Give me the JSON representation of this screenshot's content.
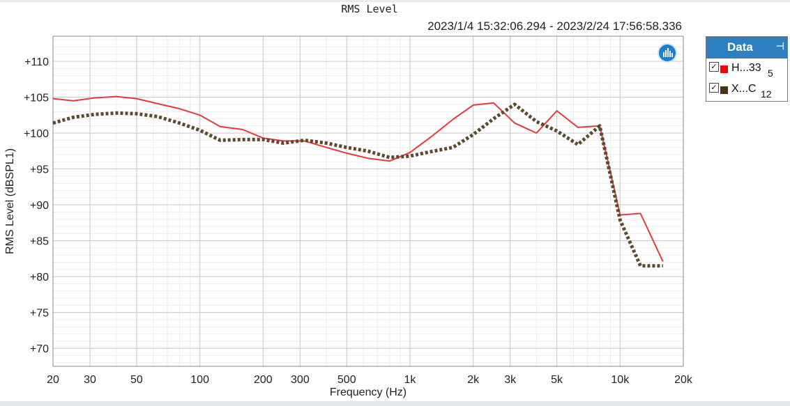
{
  "window": {
    "title": "RMS Level",
    "date_range": "2023/1/4 15:32:06.294 - 2023/2/24 17:56:58.336"
  },
  "legend": {
    "title": "Data",
    "pin_icon": "pin-icon",
    "items": [
      {
        "name": "H...33",
        "count": "5",
        "color": "#ff0000",
        "checked": true
      },
      {
        "name": "X...C",
        "count": "12",
        "color": "#4a3510",
        "checked": true
      }
    ]
  },
  "analyzer_icon": "analyzer-logo-icon",
  "chart_data": {
    "type": "line",
    "title": "",
    "xlabel": "Frequency (Hz)",
    "ylabel": "RMS Level (dBSPL1)",
    "xscale": "log",
    "xlim": [
      20,
      20000
    ],
    "ylim": [
      67.5,
      113.5
    ],
    "grid": true,
    "legend_placement": "right",
    "x_ticks": [
      20,
      30,
      50,
      100,
      200,
      300,
      500,
      1000,
      2000,
      3000,
      5000,
      10000,
      20000
    ],
    "x_tick_labels": [
      "20",
      "30",
      "50",
      "100",
      "200",
      "300",
      "500",
      "1k",
      "2k",
      "3k",
      "5k",
      "10k",
      "20k"
    ],
    "y_ticks": [
      70,
      75,
      80,
      85,
      90,
      95,
      100,
      105,
      110
    ],
    "y_tick_labels": [
      "+70",
      "+75",
      "+80",
      "+85",
      "+90",
      "+95",
      "+100",
      "+105",
      "+110"
    ],
    "series": [
      {
        "name": "H...33",
        "color": "#e8383d",
        "style": "solid",
        "x": [
          20,
          25,
          31.5,
          40,
          50,
          63,
          80,
          100,
          125,
          160,
          200,
          250,
          315,
          400,
          500,
          630,
          800,
          1000,
          1250,
          1600,
          2000,
          2500,
          3150,
          4000,
          5000,
          6300,
          8000,
          10000,
          12500,
          16000
        ],
        "values": [
          104.8,
          104.5,
          104.9,
          105.1,
          104.8,
          104.1,
          103.4,
          102.5,
          100.9,
          100.5,
          99.3,
          98.9,
          98.9,
          98.0,
          97.2,
          96.5,
          96.1,
          97.3,
          99.4,
          101.9,
          103.9,
          104.2,
          101.4,
          100.0,
          103.1,
          100.8,
          101.0,
          88.6,
          88.8,
          82.1
        ]
      },
      {
        "name": "X...C",
        "color": "#5c4a2c",
        "style": "dotted",
        "x": [
          20,
          25,
          31.5,
          40,
          50,
          63,
          80,
          100,
          125,
          160,
          200,
          250,
          315,
          400,
          500,
          630,
          800,
          1000,
          1250,
          1600,
          2000,
          2500,
          3150,
          4000,
          5000,
          6300,
          8000,
          10000,
          12500,
          16000
        ],
        "values": [
          101.4,
          102.2,
          102.6,
          102.8,
          102.7,
          102.3,
          101.4,
          100.4,
          99.0,
          99.1,
          99.1,
          98.6,
          99.0,
          98.6,
          98.0,
          97.5,
          96.6,
          96.8,
          97.4,
          98.0,
          99.8,
          102.0,
          104.0,
          101.6,
          100.3,
          98.4,
          101.0,
          87.9,
          81.5,
          81.5
        ]
      }
    ]
  }
}
